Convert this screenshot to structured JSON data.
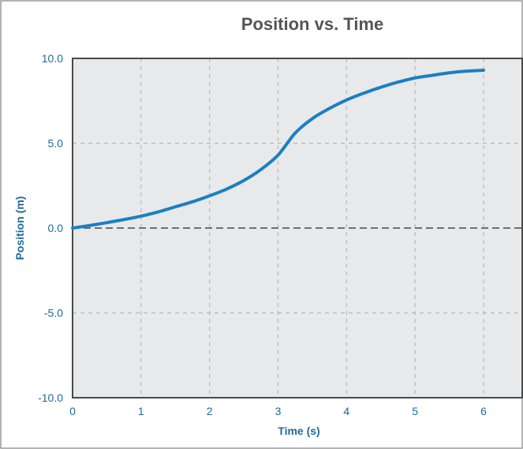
{
  "chart_data": {
    "type": "line",
    "title": "Position vs. Time",
    "xlabel": "Time (s)",
    "ylabel": "Position (m)",
    "xlim": [
      0,
      6
    ],
    "ylim": [
      -10,
      10
    ],
    "x_ticks": [
      0,
      1,
      2,
      3,
      4,
      5,
      6
    ],
    "x_tick_labels": [
      "0",
      "1",
      "2",
      "3",
      "4",
      "5",
      "6"
    ],
    "y_ticks": [
      10,
      5,
      0,
      -5,
      -10
    ],
    "y_tick_labels": [
      "10.0",
      "5.0",
      "0.0",
      "-5.0",
      "-10.0"
    ],
    "grid": true,
    "legend": "none",
    "colors": {
      "line": "#1b7fc4",
      "plot_bg": "#e8e9eb",
      "axis_text": "#1e6a9a",
      "title": "#555555",
      "grid": "#b8b8b8",
      "zero_line": "#707070"
    },
    "series": [
      {
        "x": [
          0,
          0.25,
          0.5,
          0.75,
          1.0,
          1.25,
          1.5,
          1.75,
          2.0,
          2.25,
          2.5,
          2.75,
          3.0,
          3.25,
          3.5,
          3.75,
          4.0,
          4.25,
          4.5,
          4.75,
          5.0,
          5.25,
          5.5,
          5.75,
          6.0
        ],
        "y": [
          0,
          0.15,
          0.32,
          0.5,
          0.7,
          0.95,
          1.25,
          1.55,
          1.9,
          2.3,
          2.8,
          3.45,
          4.3,
          5.6,
          6.45,
          7.05,
          7.55,
          7.95,
          8.3,
          8.6,
          8.85,
          9.0,
          9.15,
          9.25,
          9.3
        ]
      }
    ]
  }
}
